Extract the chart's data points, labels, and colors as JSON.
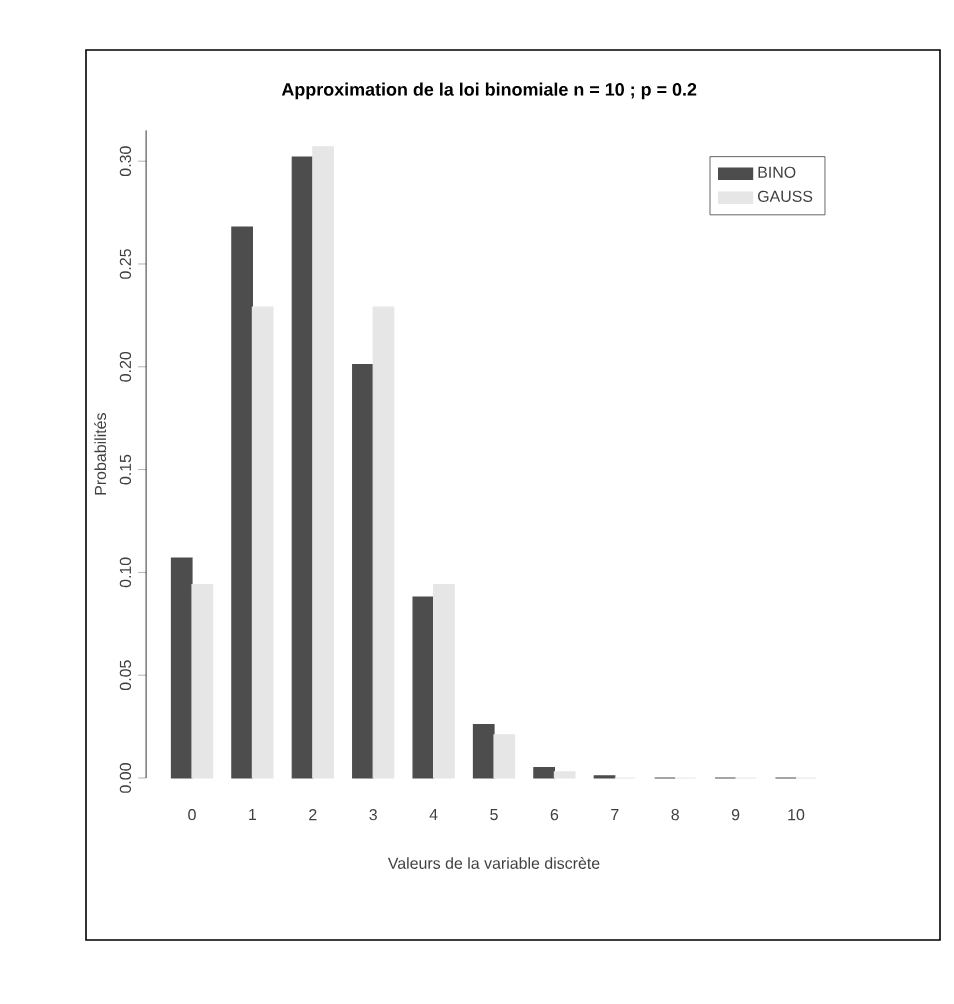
{
  "chart_data": {
    "type": "bar",
    "title": "Approximation de la loi binomiale n = 10 ; p = 0.2",
    "xlabel": "Valeurs de la variable discrète",
    "ylabel": "Probabilités",
    "categories": [
      "0",
      "1",
      "2",
      "3",
      "4",
      "5",
      "6",
      "7",
      "8",
      "9",
      "10"
    ],
    "series": [
      {
        "name": "BINO",
        "color": "#4d4d4d",
        "values": [
          0.107,
          0.268,
          0.302,
          0.201,
          0.088,
          0.026,
          0.005,
          0.001,
          0,
          0,
          0
        ]
      },
      {
        "name": "GAUSS",
        "color": "#e6e6e6",
        "values": [
          0.094,
          0.229,
          0.307,
          0.229,
          0.094,
          0.021,
          0.003,
          0,
          0,
          0,
          0
        ]
      }
    ],
    "ylim": [
      0,
      0.315
    ],
    "yticks": [
      {
        "value": 0,
        "label": "0.00"
      },
      {
        "value": 0.05,
        "label": "0.05"
      },
      {
        "value": 0.1,
        "label": "0.10"
      },
      {
        "value": 0.15,
        "label": "0.15"
      },
      {
        "value": 0.2,
        "label": "0.20"
      },
      {
        "value": 0.25,
        "label": "0.25"
      },
      {
        "value": 0.3,
        "label": "0.30"
      }
    ],
    "grid": false,
    "legend": "top right"
  }
}
